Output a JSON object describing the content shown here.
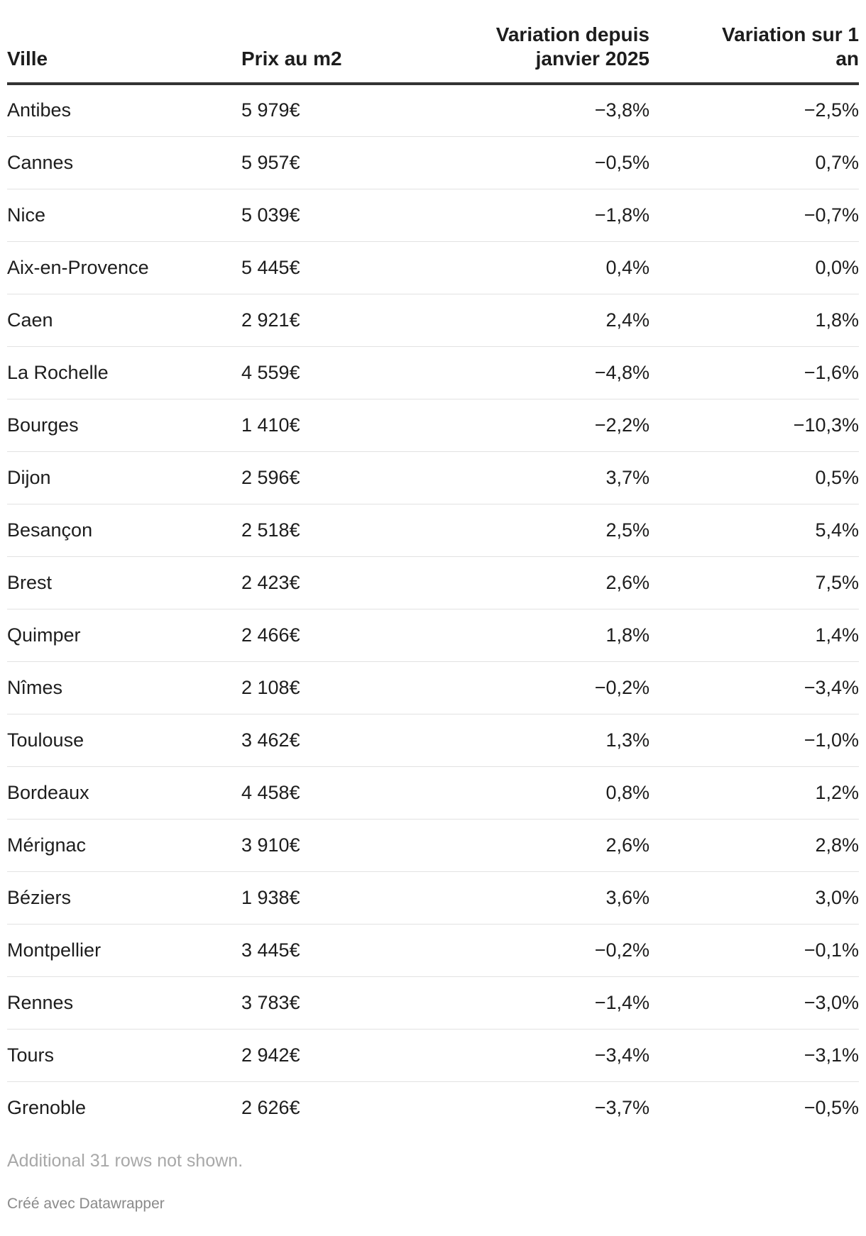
{
  "chart_data": {
    "type": "table",
    "columns": [
      "Ville",
      "Prix au m2",
      "Variation depuis janvier 2025",
      "Variation sur 1 an"
    ],
    "rows": [
      [
        "Antibes",
        "5 979€",
        "−3,8%",
        "−2,5%"
      ],
      [
        "Cannes",
        "5 957€",
        "−0,5%",
        "0,7%"
      ],
      [
        "Nice",
        "5 039€",
        "−1,8%",
        "−0,7%"
      ],
      [
        "Aix-en-Provence",
        "5 445€",
        "0,4%",
        "0,0%"
      ],
      [
        "Caen",
        "2 921€",
        "2,4%",
        "1,8%"
      ],
      [
        "La Rochelle",
        "4 559€",
        "−4,8%",
        "−1,6%"
      ],
      [
        "Bourges",
        "1 410€",
        "−2,2%",
        "−10,3%"
      ],
      [
        "Dijon",
        "2 596€",
        "3,7%",
        "0,5%"
      ],
      [
        "Besançon",
        "2 518€",
        "2,5%",
        "5,4%"
      ],
      [
        "Brest",
        "2 423€",
        "2,6%",
        "7,5%"
      ],
      [
        "Quimper",
        "2 466€",
        "1,8%",
        "1,4%"
      ],
      [
        "Nîmes",
        "2 108€",
        "−0,2%",
        "−3,4%"
      ],
      [
        "Toulouse",
        "3 462€",
        "1,3%",
        "−1,0%"
      ],
      [
        "Bordeaux",
        "4 458€",
        "0,8%",
        "1,2%"
      ],
      [
        "Mérignac",
        "3 910€",
        "2,6%",
        "2,8%"
      ],
      [
        "Béziers",
        "1 938€",
        "3,6%",
        "3,0%"
      ],
      [
        "Montpellier",
        "3 445€",
        "−0,2%",
        "−0,1%"
      ],
      [
        "Rennes",
        "3 783€",
        "−1,4%",
        "−3,0%"
      ],
      [
        "Tours",
        "2 942€",
        "−3,4%",
        "−3,1%"
      ],
      [
        "Grenoble",
        "2 626€",
        "−3,7%",
        "−0,5%"
      ]
    ]
  },
  "header": {
    "ville": "Ville",
    "prix": "Prix au m2",
    "var_jan_line1": "Variation depuis",
    "var_jan_line2": "janvier 2025",
    "var_an_line1": "Variation sur 1",
    "var_an_line2": "an"
  },
  "footer": {
    "note": "Additional 31 rows not shown.",
    "credit": "Créé avec Datawrapper"
  }
}
